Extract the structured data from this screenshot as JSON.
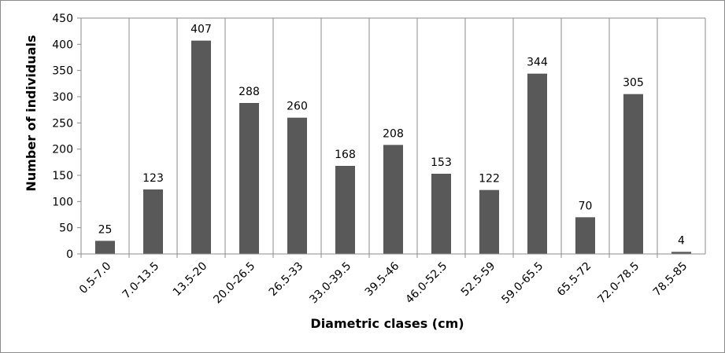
{
  "chart_data": {
    "type": "bar",
    "title": "",
    "xlabel": "Diametric clases (cm)",
    "ylabel": "Number of individuals",
    "ylim": [
      0,
      450
    ],
    "ytick_step": 50,
    "grid": "vertical-category",
    "legend": "none",
    "bar_color": "#595959",
    "categories": [
      "0.5-7.0",
      "7.0-13.5",
      "13.5-20",
      "20.0-26.5",
      "26.5-33",
      "33.0-39.5",
      "39.5-46",
      "46.0-52.5",
      "52.5-59",
      "59.0-65.5",
      "65.5-72",
      "72.0-78.5",
      "78.5-85"
    ],
    "values": [
      25,
      123,
      407,
      288,
      260,
      168,
      208,
      153,
      122,
      344,
      70,
      305,
      4
    ]
  }
}
